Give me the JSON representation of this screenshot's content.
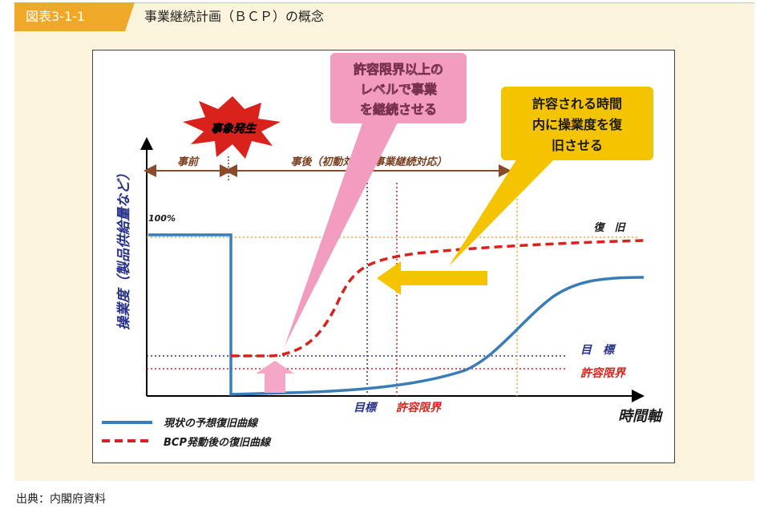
{
  "header": {
    "figure_number": "図表3-1-1",
    "title": "事業継続計画（ＢＣＰ）の概念"
  },
  "diagram": {
    "ylabel": "操業度（製品供給量など）",
    "xlabel": "時間軸",
    "label_100": "100%",
    "event_burst": "事象発生",
    "phase_before": "事前",
    "phase_after": "事後（初動対応＆事業継続対応）",
    "callout_pink": [
      "許容限界以上の",
      "レベルで事業",
      "を継続させる"
    ],
    "callout_yellow": [
      "許容される時間",
      "内に操業度を復",
      "旧させる"
    ],
    "label_recovery": "復　旧",
    "label_target": "目　標",
    "label_limit": "許容限界",
    "x_target": "目標",
    "x_limit": "許容限界",
    "legend": [
      {
        "label": "現状の予想復旧曲線",
        "color": "#3a7cb8"
      },
      {
        "label": "BCP発動後の復旧曲線",
        "color": "#d9221c"
      }
    ],
    "colors": {
      "navy": "#27318a",
      "red": "#d9221c",
      "orange": "#f0a040",
      "blue": "#3a7cb8",
      "pink": "#f29cc0",
      "yellow": "#f5c400"
    }
  },
  "source": "出典：内閣府資料"
}
